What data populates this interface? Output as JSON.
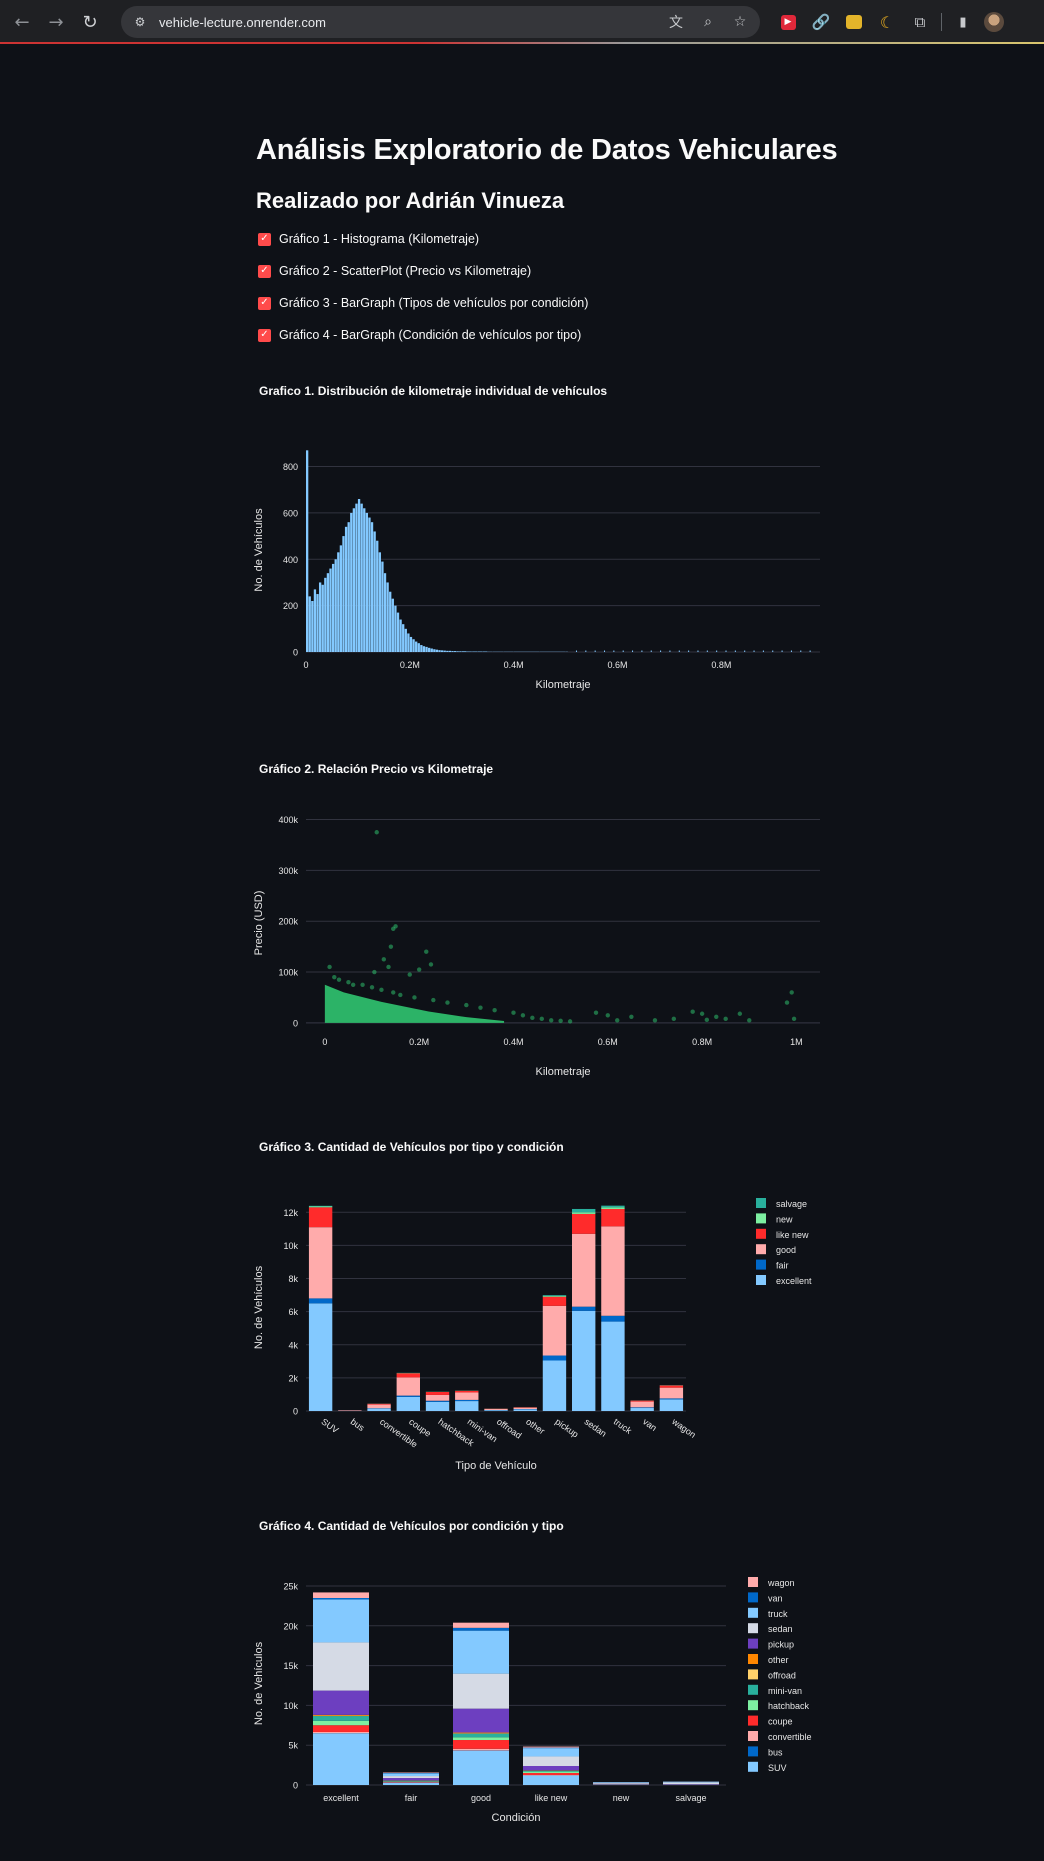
{
  "browser": {
    "url": "vehicle-lecture.onrender.com",
    "nav": {
      "back": "←",
      "forward": "→",
      "reload": "↻"
    },
    "omni_icons": [
      "translate-icon",
      "zoom-icon",
      "bookmark-star-icon"
    ],
    "extension_icons": [
      "red-extension-icon",
      "link-extension-icon",
      "yellow-extension-icon",
      "dark-mode-moon-icon",
      "puzzle-extensions-icon",
      "side-panel-icon",
      "profile-avatar"
    ]
  },
  "page": {
    "title": "Análisis Exploratorio de Datos Vehiculares",
    "subtitle": "Realizado por Adrián Vinueza",
    "checkboxes": [
      {
        "label": "Gráfico 1 - Histograma (Kilometraje)",
        "checked": true
      },
      {
        "label": "Gráfico 2 - ScatterPlot (Precio vs Kilometraje)",
        "checked": true
      },
      {
        "label": "Gráfico 3 - BarGraph (Tipos de vehículos por condición)",
        "checked": true
      },
      {
        "label": "Gráfico 4 - BarGraph (Condición de vehículos por tipo)",
        "checked": true
      }
    ],
    "accent_color": "#ff4b4b",
    "background": "#0e1117"
  },
  "chart_data": [
    {
      "type": "bar",
      "title": "Grafico 1. Distribución de kilometraje individual de vehículos",
      "xlabel": "Kilometraje",
      "ylabel": "No. de Vehículos",
      "x": [
        0,
        5000,
        10000,
        15000,
        20000,
        25000,
        30000,
        35000,
        40000,
        45000,
        50000,
        55000,
        60000,
        65000,
        70000,
        75000,
        80000,
        85000,
        90000,
        95000,
        100000,
        105000,
        110000,
        115000,
        120000,
        125000,
        130000,
        135000,
        140000,
        145000,
        150000,
        155000,
        160000,
        165000,
        170000,
        175000,
        180000,
        185000,
        190000,
        195000,
        200000,
        205000,
        210000,
        215000,
        220000,
        225000,
        230000,
        235000,
        240000,
        245000,
        250000,
        255000,
        260000,
        265000,
        270000,
        275000,
        280000,
        285000,
        290000,
        295000,
        300000,
        310000,
        320000,
        330000,
        340000,
        350000,
        360000,
        380000,
        400000,
        450000,
        500000
      ],
      "values": [
        870,
        240,
        220,
        270,
        250,
        300,
        290,
        320,
        340,
        360,
        380,
        400,
        430,
        460,
        500,
        540,
        560,
        600,
        620,
        640,
        660,
        640,
        620,
        600,
        580,
        560,
        520,
        480,
        430,
        390,
        340,
        300,
        260,
        230,
        200,
        170,
        140,
        120,
        100,
        80,
        65,
        55,
        45,
        38,
        30,
        25,
        22,
        18,
        15,
        12,
        10,
        8,
        7,
        6,
        5,
        5,
        4,
        4,
        3,
        3,
        3,
        2,
        2,
        2,
        2,
        1,
        1,
        1,
        1,
        1,
        1
      ],
      "color": "#83c9ff",
      "xlim": [
        0,
        990000
      ],
      "ylim": [
        0,
        880
      ],
      "xticks": [
        {
          "v": 0,
          "label": "0"
        },
        {
          "v": 200000,
          "label": "0.2M"
        },
        {
          "v": 400000,
          "label": "0.4M"
        },
        {
          "v": 600000,
          "label": "0.6M"
        },
        {
          "v": 800000,
          "label": "0.8M"
        }
      ],
      "yticks": [
        {
          "v": 0,
          "label": "0"
        },
        {
          "v": 200,
          "label": "200"
        },
        {
          "v": 400,
          "label": "400"
        },
        {
          "v": 600,
          "label": "600"
        },
        {
          "v": 800,
          "label": "800"
        }
      ]
    },
    {
      "type": "scatter",
      "title": "Gráfico 2. Relación Precio vs Kilometraje",
      "xlabel": "Kilometraje",
      "ylabel": "Precio (USD)",
      "color": "#2ebd6b",
      "xlim": [
        -40000,
        1050000
      ],
      "ylim": [
        -12000,
        405000
      ],
      "xticks": [
        {
          "v": 0,
          "label": "0"
        },
        {
          "v": 200000,
          "label": "0.2M"
        },
        {
          "v": 400000,
          "label": "0.4M"
        },
        {
          "v": 600000,
          "label": "0.6M"
        },
        {
          "v": 800000,
          "label": "0.8M"
        },
        {
          "v": 1000000,
          "label": "1M"
        }
      ],
      "yticks": [
        {
          "v": 0,
          "label": "0"
        },
        {
          "v": 100000,
          "label": "100k"
        },
        {
          "v": 200000,
          "label": "200k"
        },
        {
          "v": 300000,
          "label": "300k"
        },
        {
          "v": 400000,
          "label": "400k"
        }
      ],
      "points": [
        [
          110000,
          375000
        ],
        [
          150000,
          190000
        ],
        [
          145000,
          185000
        ],
        [
          140000,
          150000
        ],
        [
          125000,
          125000
        ],
        [
          215000,
          140000
        ],
        [
          225000,
          115000
        ],
        [
          135000,
          110000
        ],
        [
          105000,
          100000
        ],
        [
          10000,
          110000
        ],
        [
          20000,
          90000
        ],
        [
          30000,
          85000
        ],
        [
          50000,
          80000
        ],
        [
          80000,
          75000
        ],
        [
          100000,
          70000
        ],
        [
          120000,
          65000
        ],
        [
          145000,
          60000
        ],
        [
          160000,
          55000
        ],
        [
          190000,
          50000
        ],
        [
          230000,
          45000
        ],
        [
          260000,
          40000
        ],
        [
          300000,
          35000
        ],
        [
          330000,
          30000
        ],
        [
          360000,
          25000
        ],
        [
          400000,
          20000
        ],
        [
          420000,
          15000
        ],
        [
          440000,
          10000
        ],
        [
          460000,
          8000
        ],
        [
          480000,
          5000
        ],
        [
          500000,
          4000
        ],
        [
          520000,
          3000
        ],
        [
          575000,
          20000
        ],
        [
          600000,
          15000
        ],
        [
          620000,
          5000
        ],
        [
          650000,
          12000
        ],
        [
          700000,
          5000
        ],
        [
          740000,
          8000
        ],
        [
          780000,
          22000
        ],
        [
          800000,
          18000
        ],
        [
          810000,
          6000
        ],
        [
          830000,
          12000
        ],
        [
          850000,
          8000
        ],
        [
          880000,
          18000
        ],
        [
          900000,
          5000
        ],
        [
          990000,
          60000
        ],
        [
          980000,
          40000
        ],
        [
          995000,
          8000
        ],
        [
          200000,
          105000
        ],
        [
          180000,
          95000
        ],
        [
          60000,
          75000
        ]
      ],
      "dense_region": {
        "x_max": 380000,
        "y_max_at_x0": 75000
      }
    },
    {
      "type": "bar",
      "stacked": true,
      "title": "Gráfico 3. Cantidad de Vehículos por tipo y condición",
      "xlabel": "Tipo de Vehículo",
      "ylabel": "No. de Vehículos",
      "categories": [
        "SUV",
        "bus",
        "convertible",
        "coupe",
        "hatchback",
        "mini-van",
        "offroad",
        "other",
        "pickup",
        "sedan",
        "truck",
        "van",
        "wagon"
      ],
      "ylim": [
        0,
        12500
      ],
      "yticks": [
        {
          "v": 0,
          "label": "0"
        },
        {
          "v": 2000,
          "label": "2k"
        },
        {
          "v": 4000,
          "label": "4k"
        },
        {
          "v": 6000,
          "label": "6k"
        },
        {
          "v": 8000,
          "label": "8k"
        },
        {
          "v": 10000,
          "label": "10k"
        },
        {
          "v": 12000,
          "label": "12k"
        }
      ],
      "series": [
        {
          "name": "excellent",
          "color": "#83c9ff",
          "values": [
            6500,
            10,
            150,
            850,
            550,
            600,
            50,
            100,
            3050,
            6050,
            5400,
            180,
            700
          ]
        },
        {
          "name": "fair",
          "color": "#0068c9",
          "values": [
            300,
            5,
            20,
            80,
            70,
            70,
            10,
            20,
            300,
            250,
            350,
            40,
            60
          ]
        },
        {
          "name": "good",
          "color": "#ffabab",
          "values": [
            4300,
            30,
            220,
            1100,
            350,
            450,
            60,
            80,
            3000,
            4400,
            5400,
            350,
            650
          ]
        },
        {
          "name": "like new",
          "color": "#ff2b2b",
          "values": [
            1200,
            5,
            50,
            250,
            180,
            100,
            20,
            30,
            550,
            1200,
            1050,
            60,
            130
          ]
        },
        {
          "name": "new",
          "color": "#7defa1",
          "values": [
            50,
            0,
            5,
            15,
            10,
            10,
            5,
            5,
            50,
            100,
            100,
            5,
            10
          ]
        },
        {
          "name": "salvage",
          "color": "#29b09d",
          "values": [
            40,
            0,
            5,
            10,
            5,
            5,
            5,
            5,
            50,
            200,
            100,
            5,
            10
          ]
        }
      ]
    },
    {
      "type": "bar",
      "stacked": true,
      "title": "Gráfico 4. Cantidad de Vehículos por condición y tipo",
      "xlabel": "Condición",
      "ylabel": "No. de Vehículos",
      "categories": [
        "excellent",
        "fair",
        "good",
        "like new",
        "new",
        "salvage"
      ],
      "ylim": [
        0,
        25500
      ],
      "yticks": [
        {
          "v": 0,
          "label": "0"
        },
        {
          "v": 5000,
          "label": "5k"
        },
        {
          "v": 10000,
          "label": "10k"
        },
        {
          "v": 15000,
          "label": "15k"
        },
        {
          "v": 20000,
          "label": "20k"
        },
        {
          "v": 25000,
          "label": "25k"
        }
      ],
      "series": [
        {
          "name": "SUV",
          "color": "#83c9ff",
          "values": [
            6500,
            300,
            4300,
            1200,
            50,
            40
          ]
        },
        {
          "name": "bus",
          "color": "#0068c9",
          "values": [
            10,
            5,
            30,
            5,
            0,
            0
          ]
        },
        {
          "name": "convertible",
          "color": "#ffabab",
          "values": [
            150,
            20,
            220,
            50,
            5,
            5
          ]
        },
        {
          "name": "coupe",
          "color": "#ff2b2b",
          "values": [
            850,
            80,
            1100,
            250,
            15,
            10
          ]
        },
        {
          "name": "hatchback",
          "color": "#7defa1",
          "values": [
            550,
            70,
            350,
            180,
            10,
            5
          ]
        },
        {
          "name": "mini-van",
          "color": "#29b09d",
          "values": [
            600,
            70,
            450,
            100,
            10,
            5
          ]
        },
        {
          "name": "offroad",
          "color": "#ffd16a",
          "values": [
            50,
            10,
            60,
            20,
            5,
            5
          ]
        },
        {
          "name": "other",
          "color": "#ff8700",
          "values": [
            100,
            20,
            80,
            30,
            5,
            5
          ]
        },
        {
          "name": "pickup",
          "color": "#6d3fc0",
          "values": [
            3050,
            300,
            3000,
            550,
            50,
            50
          ]
        },
        {
          "name": "sedan",
          "color": "#d5dae5",
          "values": [
            6050,
            250,
            4400,
            1200,
            100,
            200
          ]
        },
        {
          "name": "truck",
          "color": "#83c9ff",
          "values": [
            5400,
            350,
            5400,
            1050,
            100,
            100
          ]
        },
        {
          "name": "van",
          "color": "#0068c9",
          "values": [
            180,
            40,
            350,
            60,
            5,
            5
          ]
        },
        {
          "name": "wagon",
          "color": "#ffabab",
          "values": [
            700,
            60,
            650,
            130,
            10,
            10
          ]
        }
      ]
    }
  ]
}
